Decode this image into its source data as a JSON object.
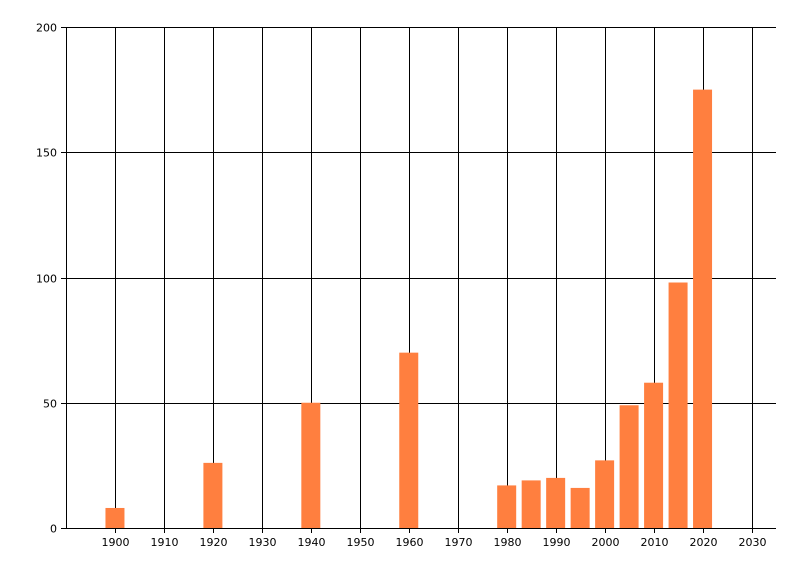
{
  "chart_data": {
    "type": "bar",
    "title": "",
    "xlabel": "",
    "ylabel": "",
    "xlim": [
      1890,
      2035
    ],
    "ylim": [
      0,
      200
    ],
    "grid": true,
    "x_ticks": [
      1900,
      1910,
      1920,
      1930,
      1940,
      1950,
      1960,
      1970,
      1980,
      1990,
      2000,
      2010,
      2020,
      2030
    ],
    "y_ticks": [
      0,
      50,
      100,
      150,
      200
    ],
    "bar_color": "#FF7F3F",
    "x": [
      1900,
      1920,
      1940,
      1960,
      1980,
      1985,
      1990,
      1995,
      2000,
      2005,
      2010,
      2015,
      2020
    ],
    "values": [
      8,
      26,
      50,
      70,
      17,
      19,
      20,
      16,
      27,
      49,
      58,
      98,
      175
    ]
  }
}
